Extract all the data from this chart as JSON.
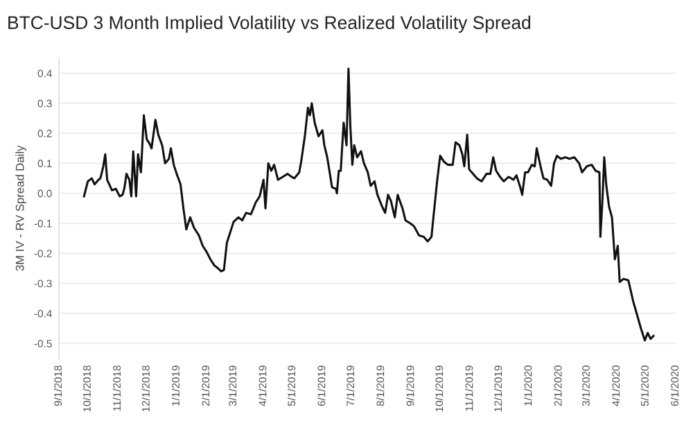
{
  "chart_data": {
    "type": "line",
    "title": "BTC-USD 3 Month Implied Volatility vs Realized Volatility Spread",
    "ylabel": "3M IV - RV Spread Daily",
    "x": [
      "2018-09-27",
      "2018-10-01",
      "2018-10-05",
      "2018-10-08",
      "2018-10-12",
      "2018-10-14",
      "2018-10-17",
      "2018-10-19",
      "2018-10-21",
      "2018-10-26",
      "2018-10-30",
      "2018-11-03",
      "2018-11-06",
      "2018-11-08",
      "2018-11-10",
      "2018-11-13",
      "2018-11-15",
      "2018-11-17",
      "2018-11-20",
      "2018-11-22",
      "2018-11-25",
      "2018-11-28",
      "2018-12-01",
      "2018-12-04",
      "2018-12-06",
      "2018-12-10",
      "2018-12-13",
      "2018-12-17",
      "2018-12-20",
      "2018-12-24",
      "2018-12-26",
      "2018-12-29",
      "2019-01-01",
      "2019-01-05",
      "2019-01-08",
      "2019-01-11",
      "2019-01-15",
      "2019-01-19",
      "2019-01-24",
      "2019-01-28",
      "2019-02-01",
      "2019-02-05",
      "2019-02-09",
      "2019-02-13",
      "2019-02-16",
      "2019-02-19",
      "2019-02-22",
      "2019-02-26",
      "2019-03-01",
      "2019-03-06",
      "2019-03-10",
      "2019-03-14",
      "2019-03-19",
      "2019-03-24",
      "2019-03-28",
      "2019-04-01",
      "2019-04-03",
      "2019-04-06",
      "2019-04-09",
      "2019-04-12",
      "2019-04-16",
      "2019-04-21",
      "2019-04-26",
      "2019-04-30",
      "2019-05-03",
      "2019-05-08",
      "2019-05-10",
      "2019-05-14",
      "2019-05-17",
      "2019-05-19",
      "2019-05-21",
      "2019-05-24",
      "2019-05-28",
      "2019-06-01",
      "2019-06-03",
      "2019-06-06",
      "2019-06-11",
      "2019-06-15",
      "2019-06-16",
      "2019-06-18",
      "2019-06-20",
      "2019-06-23",
      "2019-06-26",
      "2019-06-28",
      "2019-06-30",
      "2019-07-02",
      "2019-07-04",
      "2019-07-07",
      "2019-07-11",
      "2019-07-14",
      "2019-07-18",
      "2019-07-21",
      "2019-07-25",
      "2019-07-28",
      "2019-08-02",
      "2019-08-05",
      "2019-08-08",
      "2019-08-11",
      "2019-08-15",
      "2019-08-18",
      "2019-08-23",
      "2019-08-26",
      "2019-08-31",
      "2019-09-04",
      "2019-09-09",
      "2019-09-14",
      "2019-09-18",
      "2019-09-22",
      "2019-09-24",
      "2019-09-28",
      "2019-10-01",
      "2019-10-05",
      "2019-10-09",
      "2019-10-14",
      "2019-10-17",
      "2019-10-21",
      "2019-10-24",
      "2019-10-26",
      "2019-10-29",
      "2019-10-31",
      "2019-11-04",
      "2019-11-08",
      "2019-11-13",
      "2019-11-18",
      "2019-11-22",
      "2019-11-25",
      "2019-11-28",
      "2019-12-02",
      "2019-12-06",
      "2019-12-11",
      "2019-12-16",
      "2019-12-19",
      "2019-12-23",
      "2019-12-25",
      "2019-12-28",
      "2019-12-31",
      "2020-01-04",
      "2020-01-07",
      "2020-01-09",
      "2020-01-13",
      "2020-01-16",
      "2020-01-20",
      "2020-01-24",
      "2020-01-27",
      "2020-01-30",
      "2020-02-03",
      "2020-02-08",
      "2020-02-12",
      "2020-02-17",
      "2020-02-22",
      "2020-02-25",
      "2020-03-01",
      "2020-03-06",
      "2020-03-10",
      "2020-03-14",
      "2020-03-15",
      "2020-03-17",
      "2020-03-19",
      "2020-03-21",
      "2020-03-24",
      "2020-03-27",
      "2020-03-30",
      "2020-04-02",
      "2020-04-04",
      "2020-04-08",
      "2020-04-13",
      "2020-04-18",
      "2020-04-22",
      "2020-04-26",
      "2020-04-30",
      "2020-05-03",
      "2020-05-06",
      "2020-05-09"
    ],
    "series": [
      {
        "color": "#111111",
        "values": [
          -0.01,
          0.04,
          0.05,
          0.03,
          0.045,
          0.05,
          0.09,
          0.13,
          0.045,
          0.01,
          0.015,
          -0.01,
          -0.005,
          0.02,
          0.065,
          0.045,
          -0.01,
          0.14,
          -0.01,
          0.13,
          0.07,
          0.26,
          0.18,
          0.165,
          0.15,
          0.245,
          0.195,
          0.16,
          0.1,
          0.115,
          0.15,
          0.095,
          0.065,
          0.03,
          -0.05,
          -0.12,
          -0.08,
          -0.115,
          -0.14,
          -0.175,
          -0.195,
          -0.22,
          -0.24,
          -0.25,
          -0.26,
          -0.255,
          -0.165,
          -0.125,
          -0.095,
          -0.08,
          -0.09,
          -0.065,
          -0.07,
          -0.03,
          -0.01,
          0.045,
          -0.05,
          0.1,
          0.075,
          0.095,
          0.045,
          0.055,
          0.065,
          0.055,
          0.05,
          0.07,
          0.105,
          0.195,
          0.285,
          0.26,
          0.3,
          0.235,
          0.19,
          0.21,
          0.16,
          0.12,
          0.02,
          0.015,
          0.0,
          0.075,
          0.075,
          0.235,
          0.16,
          0.415,
          0.22,
          0.095,
          0.16,
          0.12,
          0.14,
          0.1,
          0.07,
          0.025,
          0.04,
          -0.005,
          -0.045,
          -0.065,
          -0.005,
          -0.025,
          -0.08,
          -0.005,
          -0.05,
          -0.09,
          -0.1,
          -0.11,
          -0.14,
          -0.145,
          -0.16,
          -0.145,
          -0.08,
          0.045,
          0.125,
          0.105,
          0.095,
          0.095,
          0.17,
          0.16,
          0.13,
          0.09,
          0.195,
          0.08,
          0.065,
          0.05,
          0.04,
          0.065,
          0.065,
          0.12,
          0.075,
          0.055,
          0.04,
          0.055,
          0.045,
          0.06,
          0.02,
          -0.005,
          0.07,
          0.07,
          0.095,
          0.09,
          0.15,
          0.09,
          0.05,
          0.045,
          0.025,
          0.1,
          0.125,
          0.115,
          0.12,
          0.115,
          0.12,
          0.1,
          0.07,
          0.09,
          0.095,
          0.075,
          0.07,
          -0.145,
          -0.03,
          0.12,
          0.03,
          -0.045,
          -0.08,
          -0.22,
          -0.175,
          -0.295,
          -0.285,
          -0.29,
          -0.36,
          -0.405,
          -0.45,
          -0.49,
          -0.465,
          -0.485,
          -0.475
        ]
      }
    ],
    "xlim": [
      "2018-09-01",
      "2020-06-01"
    ],
    "xticks": [
      {
        "value": "2018-09-01",
        "label": "9/1/2018"
      },
      {
        "value": "2018-10-01",
        "label": "10/1/2018"
      },
      {
        "value": "2018-11-01",
        "label": "11/1/2018"
      },
      {
        "value": "2018-12-01",
        "label": "12/1/2018"
      },
      {
        "value": "2019-01-01",
        "label": "1/1/2019"
      },
      {
        "value": "2019-02-01",
        "label": "2/1/2019"
      },
      {
        "value": "2019-03-01",
        "label": "3/1/2019"
      },
      {
        "value": "2019-04-01",
        "label": "4/1/2019"
      },
      {
        "value": "2019-05-01",
        "label": "5/1/2019"
      },
      {
        "value": "2019-06-01",
        "label": "6/1/2019"
      },
      {
        "value": "2019-07-01",
        "label": "7/1/2019"
      },
      {
        "value": "2019-08-01",
        "label": "8/1/2019"
      },
      {
        "value": "2019-09-01",
        "label": "9/1/2019"
      },
      {
        "value": "2019-10-01",
        "label": "10/1/2019"
      },
      {
        "value": "2019-11-01",
        "label": "11/1/2019"
      },
      {
        "value": "2019-12-01",
        "label": "12/1/2019"
      },
      {
        "value": "2020-01-01",
        "label": "1/1/2020"
      },
      {
        "value": "2020-02-01",
        "label": "2/1/2020"
      },
      {
        "value": "2020-03-01",
        "label": "3/1/2020"
      },
      {
        "value": "2020-04-01",
        "label": "4/1/2020"
      },
      {
        "value": "2020-05-01",
        "label": "5/1/2020"
      },
      {
        "value": "2020-06-01",
        "label": "6/1/2020"
      }
    ],
    "ylim": [
      -0.55,
      0.45
    ],
    "yticks": [
      -0.5,
      -0.4,
      -0.3,
      -0.2,
      -0.1,
      {
        "value": 0,
        "label": "0.0"
      },
      0.1,
      0.2,
      0.3,
      0.4
    ],
    "grid": "y",
    "marker": "none",
    "line_style": "solid"
  }
}
